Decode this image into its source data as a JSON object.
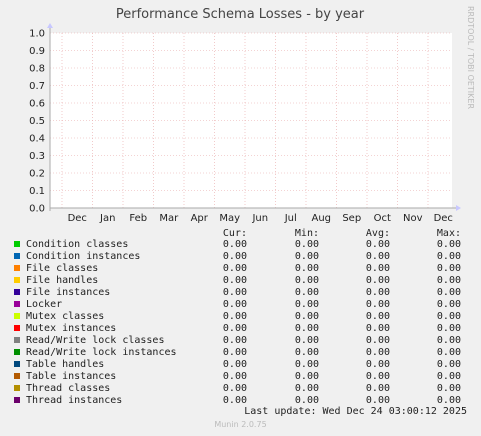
{
  "chart_data": {
    "type": "line",
    "title": "Performance Schema Losses - by year",
    "side_label": "RRDTOOL / TOBI OETIKER",
    "ylim": [
      0,
      1.0
    ],
    "y_ticks": [
      "0.0",
      "0.1",
      "0.2",
      "0.3",
      "0.4",
      "0.5",
      "0.6",
      "0.7",
      "0.8",
      "0.9",
      "1.0"
    ],
    "x_ticks": [
      "Dec",
      "Jan",
      "Feb",
      "Mar",
      "Apr",
      "May",
      "Jun",
      "Jul",
      "Aug",
      "Sep",
      "Oct",
      "Nov",
      "Dec"
    ],
    "grid": true,
    "legend_headers": [
      "Cur:",
      "Min:",
      "Avg:",
      "Max:"
    ],
    "series": [
      {
        "name": "Condition classes",
        "color": "#00cc00",
        "cur": "0.00",
        "min": "0.00",
        "avg": "0.00",
        "max": "0.00"
      },
      {
        "name": "Condition instances",
        "color": "#0066b3",
        "cur": "0.00",
        "min": "0.00",
        "avg": "0.00",
        "max": "0.00"
      },
      {
        "name": "File classes",
        "color": "#ff8000",
        "cur": "0.00",
        "min": "0.00",
        "avg": "0.00",
        "max": "0.00"
      },
      {
        "name": "File handles",
        "color": "#ffcc00",
        "cur": "0.00",
        "min": "0.00",
        "avg": "0.00",
        "max": "0.00"
      },
      {
        "name": "File instances",
        "color": "#330099",
        "cur": "0.00",
        "min": "0.00",
        "avg": "0.00",
        "max": "0.00"
      },
      {
        "name": "Locker",
        "color": "#990099",
        "cur": "0.00",
        "min": "0.00",
        "avg": "0.00",
        "max": "0.00"
      },
      {
        "name": "Mutex classes",
        "color": "#ccff00",
        "cur": "0.00",
        "min": "0.00",
        "avg": "0.00",
        "max": "0.00"
      },
      {
        "name": "Mutex instances",
        "color": "#ff0000",
        "cur": "0.00",
        "min": "0.00",
        "avg": "0.00",
        "max": "0.00"
      },
      {
        "name": "Read/Write lock classes",
        "color": "#808080",
        "cur": "0.00",
        "min": "0.00",
        "avg": "0.00",
        "max": "0.00"
      },
      {
        "name": "Read/Write lock instances",
        "color": "#008f00",
        "cur": "0.00",
        "min": "0.00",
        "avg": "0.00",
        "max": "0.00"
      },
      {
        "name": "Table handles",
        "color": "#00487d",
        "cur": "0.00",
        "min": "0.00",
        "avg": "0.00",
        "max": "0.00"
      },
      {
        "name": "Table instances",
        "color": "#b35a00",
        "cur": "0.00",
        "min": "0.00",
        "avg": "0.00",
        "max": "0.00"
      },
      {
        "name": "Thread classes",
        "color": "#b38f00",
        "cur": "0.00",
        "min": "0.00",
        "avg": "0.00",
        "max": "0.00"
      },
      {
        "name": "Thread instances",
        "color": "#6b006b",
        "cur": "0.00",
        "min": "0.00",
        "avg": "0.00",
        "max": "0.00"
      }
    ]
  },
  "footer": {
    "last_update": "Last update: Wed Dec 24 03:00:12 2025",
    "munin_version": "Munin 2.0.75"
  }
}
